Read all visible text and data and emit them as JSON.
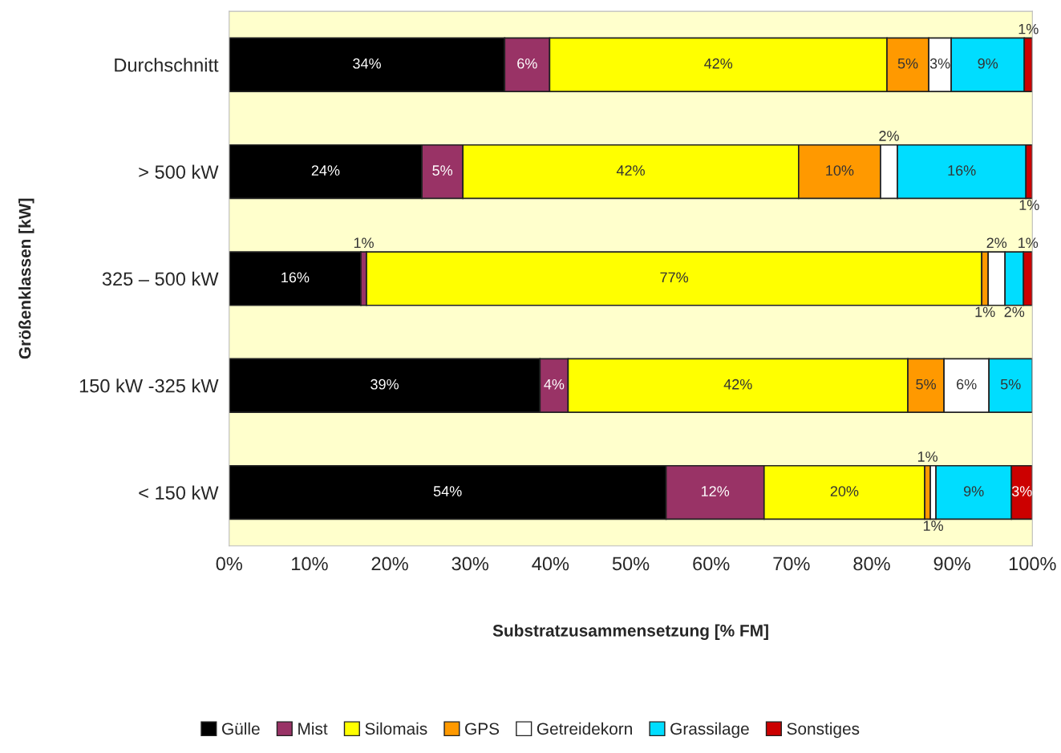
{
  "chart_data": {
    "type": "bar",
    "orientation": "horizontal",
    "stacked": true,
    "xlabel": "Substratzusammensetzung [% FM]",
    "ylabel": "Größenklassen [kW]",
    "categories": [
      "Durchschnitt",
      "> 500 kW",
      "325 – 500 kW",
      "150 kW -325 kW",
      "< 150 kW"
    ],
    "xlim": [
      0,
      100
    ],
    "xticks": [
      {
        "value": 0,
        "label": "0%"
      },
      {
        "value": 10,
        "label": "10%"
      },
      {
        "value": 20,
        "label": "20%"
      },
      {
        "value": 30,
        "label": "30%"
      },
      {
        "value": 40,
        "label": "40%"
      },
      {
        "value": 50,
        "label": "50%"
      },
      {
        "value": 60,
        "label": "60%"
      },
      {
        "value": 70,
        "label": "70%"
      },
      {
        "value": 80,
        "label": "80%"
      },
      {
        "value": 90,
        "label": "90%"
      },
      {
        "value": 100,
        "label": "100%"
      }
    ],
    "grid": false,
    "legend": "bottom",
    "series": [
      {
        "name": "Gülle",
        "color": "#000000",
        "values": [
          34.3,
          24.0,
          16.4,
          38.7,
          54.4
        ],
        "value_labels": [
          "34%",
          "24%",
          "16%",
          "39%",
          "54%"
        ]
      },
      {
        "name": "Mist",
        "color": "#993366",
        "values": [
          5.6,
          5.1,
          0.7,
          3.5,
          12.2
        ],
        "value_labels": [
          "6%",
          "5%",
          "1%",
          "4%",
          "12%"
        ]
      },
      {
        "name": "Silomais",
        "color": "#ffff00",
        "values": [
          42.0,
          41.8,
          76.6,
          42.3,
          20.0
        ],
        "value_labels": [
          "42%",
          "42%",
          "77%",
          "42%",
          "20%"
        ]
      },
      {
        "name": "GPS",
        "color": "#ff9900",
        "values": [
          5.2,
          10.2,
          0.8,
          4.5,
          0.7
        ],
        "value_labels": [
          "5%",
          "10%",
          "1%",
          "5%",
          "1%"
        ]
      },
      {
        "name": "Getreidekorn",
        "color": "#ffffff",
        "values": [
          2.8,
          2.1,
          2.1,
          5.6,
          0.7
        ],
        "value_labels": [
          "3%",
          "2%",
          "2%",
          "6%",
          "1%"
        ]
      },
      {
        "name": "Grassilage",
        "color": "#00ddff",
        "values": [
          9.1,
          16.0,
          2.3,
          5.4,
          9.4
        ],
        "value_labels": [
          "9%",
          "16%",
          "2%",
          "5%",
          "9%"
        ]
      },
      {
        "name": "Sonstiges",
        "color": "#cc0000",
        "values": [
          1.0,
          0.8,
          1.1,
          null,
          2.6
        ],
        "value_labels": [
          "1%",
          "1%",
          "1%",
          null,
          "3%"
        ]
      }
    ]
  }
}
